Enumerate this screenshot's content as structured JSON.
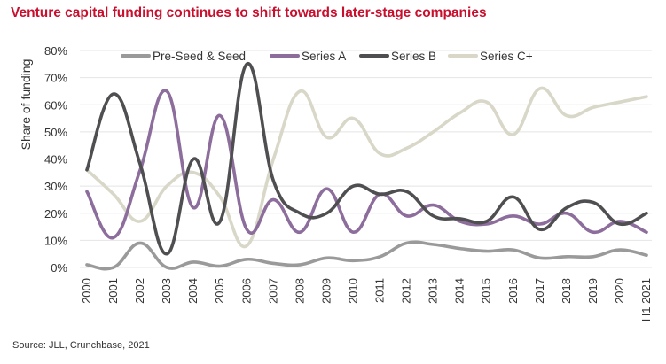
{
  "title": "Venture capital funding continues to shift towards later-stage companies",
  "source": "Source: JLL, Crunchbase, 2021",
  "colors": {
    "title": "#c8102e",
    "pre_seed": "#9a9a9a",
    "series_a": "#8c6d9c",
    "series_b": "#4f4f51",
    "series_c": "#d8d7c8",
    "grid": "#e4e4e4"
  },
  "chart_data": {
    "type": "line",
    "ylabel": "Share of funding",
    "ylim": [
      0,
      80
    ],
    "yticks": [
      "0%",
      "10%",
      "20%",
      "30%",
      "40%",
      "50%",
      "60%",
      "70%",
      "80%"
    ],
    "grid": true,
    "legend": "top",
    "x": [
      "2000",
      "2001",
      "2002",
      "2003",
      "2004",
      "2005",
      "2006",
      "2007",
      "2008",
      "2009",
      "2010",
      "2011",
      "2012",
      "2013",
      "2014",
      "2015",
      "2016",
      "2017",
      "2018",
      "2019",
      "2020",
      "H1 2021"
    ],
    "series": [
      {
        "name": "Pre-Seed & Seed",
        "color": "#9a9a9a",
        "values": [
          1,
          0,
          9,
          0,
          2,
          0.5,
          3,
          1.5,
          1,
          3.5,
          2.5,
          4,
          9,
          8.5,
          7,
          6,
          6.5,
          3.5,
          4,
          4,
          6.5,
          4.5
        ]
      },
      {
        "name": "Series A",
        "color": "#8c6d9c",
        "values": [
          28,
          11,
          36,
          65,
          22,
          56,
          14,
          25,
          13,
          29,
          13,
          27,
          19,
          23,
          17,
          16,
          19,
          16,
          20,
          13,
          17,
          13
        ]
      },
      {
        "name": "Series B",
        "color": "#4f4f51",
        "values": [
          36,
          64,
          38,
          5,
          40,
          17,
          75,
          32,
          20,
          20,
          30,
          27,
          28,
          19,
          18,
          17,
          26,
          14,
          22,
          24,
          16,
          20
        ]
      },
      {
        "name": "Series C+",
        "color": "#d8d7c8",
        "values": [
          36,
          27,
          17,
          30,
          35,
          26,
          8,
          40,
          65,
          48,
          55,
          42,
          44,
          50,
          57,
          61,
          49,
          66,
          56,
          59,
          61,
          63
        ]
      }
    ]
  }
}
